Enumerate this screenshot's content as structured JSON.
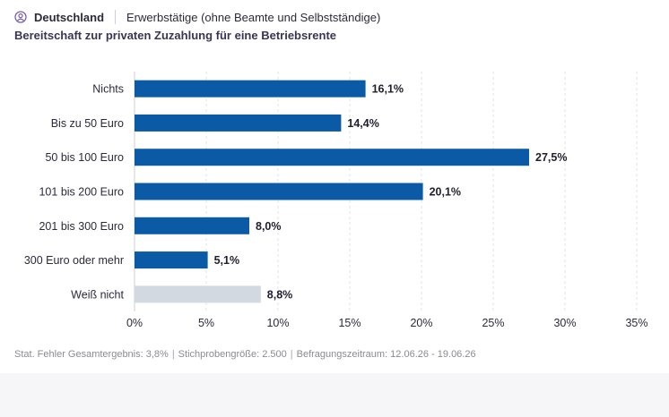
{
  "header": {
    "region": "Deutschland",
    "population": "Erwerbstätige (ohne Beamte und Selbstständige)",
    "icon": "person-search-icon"
  },
  "subtitle": "Bereitschaft zur privaten Zuzahlung für eine Betriebsrente",
  "footer": {
    "error": "Stat. Fehler Gesamtergebnis: 3,8%",
    "sample": "Stichprobengröße: 2.500",
    "period": "Befragungszeitraum: 12.06.26 - 19.06.26"
  },
  "chart_data": {
    "type": "bar",
    "orientation": "horizontal",
    "categories": [
      "Nichts",
      "Bis zu 50 Euro",
      "50 bis 100 Euro",
      "101 bis 200 Euro",
      "201 bis 300 Euro",
      "300 Euro oder mehr",
      "Weiß nicht"
    ],
    "values": [
      16.1,
      14.4,
      27.5,
      20.1,
      8.0,
      5.1,
      8.8
    ],
    "data_labels": [
      "16,1%",
      "14,4%",
      "27,5%",
      "20,1%",
      "8,0%",
      "5,1%",
      "8,8%"
    ],
    "xlim": [
      0,
      35
    ],
    "xticks": [
      0,
      5,
      10,
      15,
      20,
      25,
      30,
      35
    ],
    "xtick_labels": [
      "0%",
      "5%",
      "10%",
      "15%",
      "20%",
      "25%",
      "30%",
      "35%"
    ],
    "grid": "vertical dashed",
    "colors": {
      "primary": "#0a5aa5",
      "neutral": "#d2d9e0"
    },
    "neutral_categories": [
      "Weiß nicht"
    ]
  }
}
